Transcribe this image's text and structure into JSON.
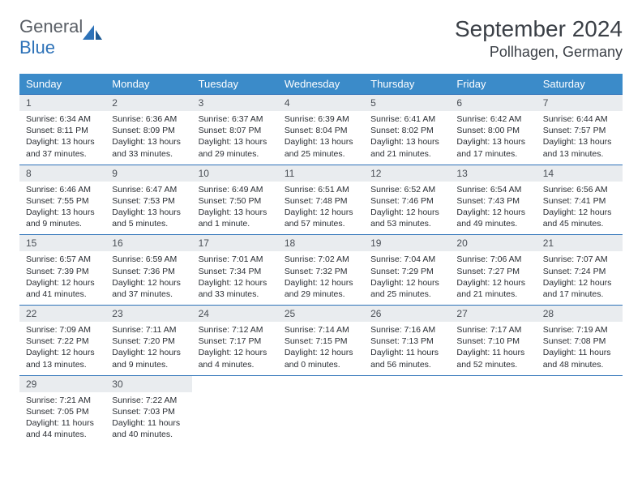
{
  "logo": {
    "text1": "General",
    "text2": "Blue"
  },
  "title": "September 2024",
  "location": "Pollhagen, Germany",
  "weekdays": [
    "Sunday",
    "Monday",
    "Tuesday",
    "Wednesday",
    "Thursday",
    "Friday",
    "Saturday"
  ],
  "colors": {
    "header_bg": "#3b8bc9",
    "header_text": "#ffffff",
    "daynum_bg": "#e9ecef",
    "border": "#2d72b8",
    "logo_gray": "#5a5f66",
    "logo_blue": "#2d72b8"
  },
  "days": [
    {
      "n": "1",
      "sr": "6:34 AM",
      "ss": "8:11 PM",
      "dl": "13 hours and 37 minutes."
    },
    {
      "n": "2",
      "sr": "6:36 AM",
      "ss": "8:09 PM",
      "dl": "13 hours and 33 minutes."
    },
    {
      "n": "3",
      "sr": "6:37 AM",
      "ss": "8:07 PM",
      "dl": "13 hours and 29 minutes."
    },
    {
      "n": "4",
      "sr": "6:39 AM",
      "ss": "8:04 PM",
      "dl": "13 hours and 25 minutes."
    },
    {
      "n": "5",
      "sr": "6:41 AM",
      "ss": "8:02 PM",
      "dl": "13 hours and 21 minutes."
    },
    {
      "n": "6",
      "sr": "6:42 AM",
      "ss": "8:00 PM",
      "dl": "13 hours and 17 minutes."
    },
    {
      "n": "7",
      "sr": "6:44 AM",
      "ss": "7:57 PM",
      "dl": "13 hours and 13 minutes."
    },
    {
      "n": "8",
      "sr": "6:46 AM",
      "ss": "7:55 PM",
      "dl": "13 hours and 9 minutes."
    },
    {
      "n": "9",
      "sr": "6:47 AM",
      "ss": "7:53 PM",
      "dl": "13 hours and 5 minutes."
    },
    {
      "n": "10",
      "sr": "6:49 AM",
      "ss": "7:50 PM",
      "dl": "13 hours and 1 minute."
    },
    {
      "n": "11",
      "sr": "6:51 AM",
      "ss": "7:48 PM",
      "dl": "12 hours and 57 minutes."
    },
    {
      "n": "12",
      "sr": "6:52 AM",
      "ss": "7:46 PM",
      "dl": "12 hours and 53 minutes."
    },
    {
      "n": "13",
      "sr": "6:54 AM",
      "ss": "7:43 PM",
      "dl": "12 hours and 49 minutes."
    },
    {
      "n": "14",
      "sr": "6:56 AM",
      "ss": "7:41 PM",
      "dl": "12 hours and 45 minutes."
    },
    {
      "n": "15",
      "sr": "6:57 AM",
      "ss": "7:39 PM",
      "dl": "12 hours and 41 minutes."
    },
    {
      "n": "16",
      "sr": "6:59 AM",
      "ss": "7:36 PM",
      "dl": "12 hours and 37 minutes."
    },
    {
      "n": "17",
      "sr": "7:01 AM",
      "ss": "7:34 PM",
      "dl": "12 hours and 33 minutes."
    },
    {
      "n": "18",
      "sr": "7:02 AM",
      "ss": "7:32 PM",
      "dl": "12 hours and 29 minutes."
    },
    {
      "n": "19",
      "sr": "7:04 AM",
      "ss": "7:29 PM",
      "dl": "12 hours and 25 minutes."
    },
    {
      "n": "20",
      "sr": "7:06 AM",
      "ss": "7:27 PM",
      "dl": "12 hours and 21 minutes."
    },
    {
      "n": "21",
      "sr": "7:07 AM",
      "ss": "7:24 PM",
      "dl": "12 hours and 17 minutes."
    },
    {
      "n": "22",
      "sr": "7:09 AM",
      "ss": "7:22 PM",
      "dl": "12 hours and 13 minutes."
    },
    {
      "n": "23",
      "sr": "7:11 AM",
      "ss": "7:20 PM",
      "dl": "12 hours and 9 minutes."
    },
    {
      "n": "24",
      "sr": "7:12 AM",
      "ss": "7:17 PM",
      "dl": "12 hours and 4 minutes."
    },
    {
      "n": "25",
      "sr": "7:14 AM",
      "ss": "7:15 PM",
      "dl": "12 hours and 0 minutes."
    },
    {
      "n": "26",
      "sr": "7:16 AM",
      "ss": "7:13 PM",
      "dl": "11 hours and 56 minutes."
    },
    {
      "n": "27",
      "sr": "7:17 AM",
      "ss": "7:10 PM",
      "dl": "11 hours and 52 minutes."
    },
    {
      "n": "28",
      "sr": "7:19 AM",
      "ss": "7:08 PM",
      "dl": "11 hours and 48 minutes."
    },
    {
      "n": "29",
      "sr": "7:21 AM",
      "ss": "7:05 PM",
      "dl": "11 hours and 44 minutes."
    },
    {
      "n": "30",
      "sr": "7:22 AM",
      "ss": "7:03 PM",
      "dl": "11 hours and 40 minutes."
    }
  ],
  "labels": {
    "sunrise": "Sunrise:",
    "sunset": "Sunset:",
    "daylight": "Daylight:"
  }
}
